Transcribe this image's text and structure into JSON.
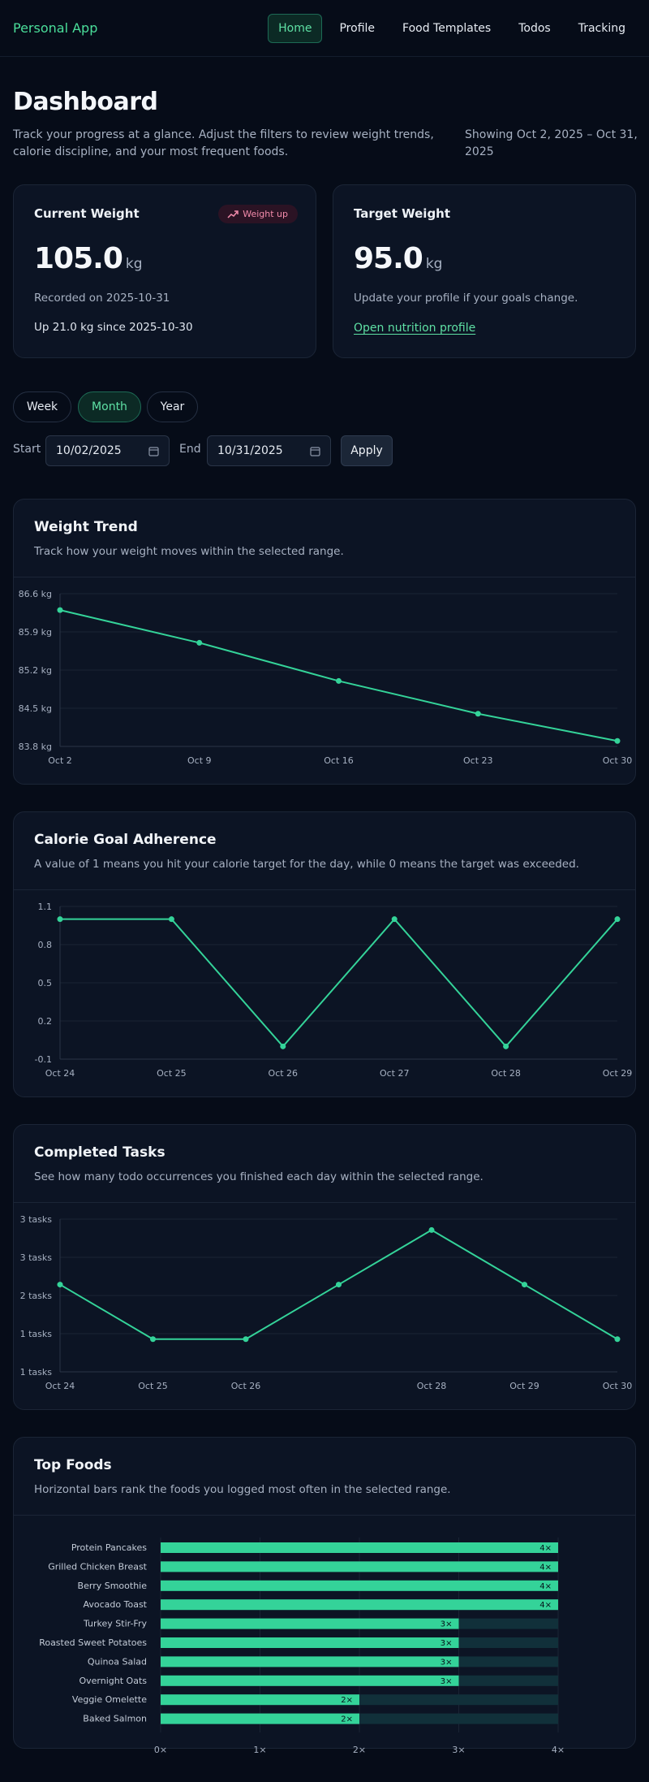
{
  "nav": {
    "brand": "Personal App",
    "links": [
      "Home",
      "Profile",
      "Food Templates",
      "Todos",
      "Tracking"
    ],
    "active": "Home"
  },
  "header": {
    "title": "Dashboard",
    "subtitle": "Track your progress at a glance. Adjust the filters to review weight trends, calorie discipline, and your most frequent foods.",
    "range": "Showing Oct 2, 2025 – Oct 31, 2025"
  },
  "current_weight": {
    "title": "Current Weight",
    "badge": "Weight up",
    "value": "105.0",
    "unit": "kg",
    "recorded": "Recorded on 2025-10-31",
    "change": "Up 21.0 kg since 2025-10-30"
  },
  "target_weight": {
    "title": "Target Weight",
    "value": "95.0",
    "unit": "kg",
    "note": "Update your profile if your goals change.",
    "link": "Open nutrition profile"
  },
  "filters": {
    "periods": [
      "Week",
      "Month",
      "Year"
    ],
    "active_period": "Month",
    "start_label": "Start",
    "start_value": "10/02/2025",
    "end_label": "End",
    "end_value": "10/31/2025",
    "apply": "Apply"
  },
  "colors": {
    "accent": "#4ade9a",
    "line": "#34d399",
    "background": "#060c18",
    "card": "#0c1424",
    "badge_text": "#f38bab"
  },
  "charts": {
    "weight": {
      "title": "Weight Trend",
      "description": "Track how your weight moves within the selected range."
    },
    "calorie": {
      "title": "Calorie Goal Adherence",
      "description": "A value of 1 means you hit your calorie target for the day, while 0 means the target was exceeded."
    },
    "tasks": {
      "title": "Completed Tasks",
      "description": "See how many todo occurrences you finished each day within the selected range."
    },
    "foods": {
      "title": "Top Foods",
      "description": "Horizontal bars rank the foods you logged most often in the selected range."
    }
  },
  "chart_data": [
    {
      "type": "line",
      "title": "Weight Trend",
      "x": [
        "Oct 2",
        "Oct 9",
        "Oct 16",
        "Oct 23",
        "Oct 30"
      ],
      "values": [
        86.3,
        85.7,
        85.0,
        84.4,
        83.9
      ],
      "y_ticks": [
        "86.6 kg",
        "85.9 kg",
        "85.2 kg",
        "84.5 kg",
        "83.8 kg"
      ],
      "ylim": [
        83.8,
        86.6
      ],
      "grid": true
    },
    {
      "type": "line",
      "title": "Calorie Goal Adherence",
      "x": [
        "Oct 24",
        "Oct 25",
        "Oct 26",
        "Oct 27",
        "Oct 28",
        "Oct 29"
      ],
      "values": [
        1,
        1,
        0,
        1,
        0,
        1
      ],
      "y_ticks": [
        "1.1",
        "0.8",
        "0.5",
        "0.2",
        "-0.1"
      ],
      "ylim": [
        -0.1,
        1.1
      ],
      "grid": true
    },
    {
      "type": "line",
      "title": "Completed Tasks",
      "x": [
        "Oct 24",
        "Oct 25",
        "Oct 26",
        "Oct 27",
        "Oct 28",
        "Oct 29",
        "Oct 30"
      ],
      "x_labels": [
        "Oct 24",
        "Oct 25",
        "Oct 26",
        "",
        "Oct 28",
        "Oct 29",
        "Oct 30"
      ],
      "values": [
        2,
        1,
        1,
        2,
        3,
        2,
        1
      ],
      "y_ticks": [
        "3 tasks",
        "3 tasks",
        "2 tasks",
        "1 tasks",
        "1 tasks"
      ],
      "ylim": [
        0.4,
        3.2
      ],
      "grid": true
    },
    {
      "type": "bar",
      "orientation": "horizontal",
      "title": "Top Foods",
      "categories": [
        "Protein Pancakes",
        "Grilled Chicken Breast",
        "Berry Smoothie",
        "Avocado Toast",
        "Turkey Stir-Fry",
        "Roasted Sweet Potatoes",
        "Quinoa Salad",
        "Overnight Oats",
        "Veggie Omelette",
        "Baked Salmon"
      ],
      "values": [
        4,
        4,
        4,
        4,
        3,
        3,
        3,
        3,
        2,
        2
      ],
      "value_labels": [
        "4×",
        "4×",
        "4×",
        "4×",
        "3×",
        "3×",
        "3×",
        "3×",
        "2×",
        "2×"
      ],
      "x_ticks": [
        "0×",
        "1×",
        "2×",
        "3×",
        "4×"
      ],
      "xlim": [
        0,
        4
      ],
      "grid": true
    }
  ]
}
